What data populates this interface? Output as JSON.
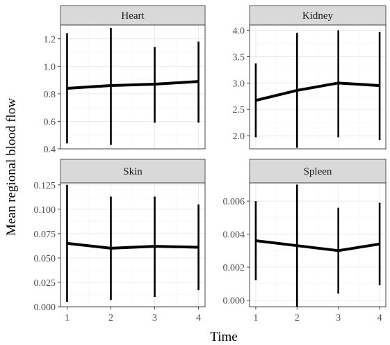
{
  "axes": {
    "xlabel": "Time",
    "ylabel": "Mean regional blood flow"
  },
  "chart_data": [
    {
      "type": "line",
      "title": "Heart",
      "x": [
        1,
        2,
        3,
        4
      ],
      "values": [
        0.84,
        0.86,
        0.87,
        0.89
      ],
      "lower": [
        0.44,
        0.43,
        0.59,
        0.59
      ],
      "upper": [
        1.24,
        1.28,
        1.14,
        1.18
      ],
      "yticks": [
        "0.4",
        "0.6",
        "0.8",
        "1.0",
        "1.2"
      ],
      "ytick_values": [
        0.4,
        0.6,
        0.8,
        1.0,
        1.2
      ],
      "ylim": [
        0.4,
        1.3
      ],
      "xlim": [
        0.85,
        4.15
      ]
    },
    {
      "type": "line",
      "title": "Kidney",
      "x": [
        1,
        2,
        3,
        4
      ],
      "values": [
        2.67,
        2.86,
        3.0,
        2.95
      ],
      "lower": [
        1.97,
        1.77,
        1.97,
        1.92
      ],
      "upper": [
        3.37,
        3.95,
        4.0,
        3.97
      ],
      "yticks": [
        "2.0",
        "2.5",
        "3.0",
        "3.5",
        "4.0"
      ],
      "ytick_values": [
        2.0,
        2.5,
        3.0,
        3.5,
        4.0
      ],
      "ylim": [
        1.75,
        4.1
      ],
      "xlim": [
        0.85,
        4.15
      ]
    },
    {
      "type": "line",
      "title": "Skin",
      "x": [
        1,
        2,
        3,
        4
      ],
      "values": [
        0.065,
        0.06,
        0.062,
        0.061
      ],
      "lower": [
        0.005,
        0.007,
        0.01,
        0.017
      ],
      "upper": [
        0.125,
        0.113,
        0.113,
        0.105
      ],
      "yticks": [
        "0.000",
        "0.025",
        "0.050",
        "0.075",
        "0.100",
        "0.125"
      ],
      "ytick_values": [
        0.0,
        0.025,
        0.05,
        0.075,
        0.1,
        0.125
      ],
      "ylim": [
        0.0,
        0.127
      ],
      "xlim": [
        0.85,
        4.15
      ]
    },
    {
      "type": "line",
      "title": "Spleen",
      "x": [
        1,
        2,
        3,
        4
      ],
      "values": [
        0.0036,
        0.0033,
        0.003,
        0.0034
      ],
      "lower": [
        0.0012,
        -0.0004,
        0.0004,
        0.0009
      ],
      "upper": [
        0.006,
        0.007,
        0.0056,
        0.0059
      ],
      "yticks": [
        "0.000",
        "0.002",
        "0.004",
        "0.006"
      ],
      "ytick_values": [
        0.0,
        0.002,
        0.004,
        0.006
      ],
      "ylim": [
        -0.0004,
        0.0071
      ],
      "xlim": [
        0.85,
        4.15
      ]
    }
  ],
  "xticks": [
    "1",
    "2",
    "3",
    "4"
  ],
  "colors": {
    "strip_fill": "#d9d9d9",
    "line": "#000000",
    "grid": "#ebebeb",
    "frame": "#333333"
  }
}
